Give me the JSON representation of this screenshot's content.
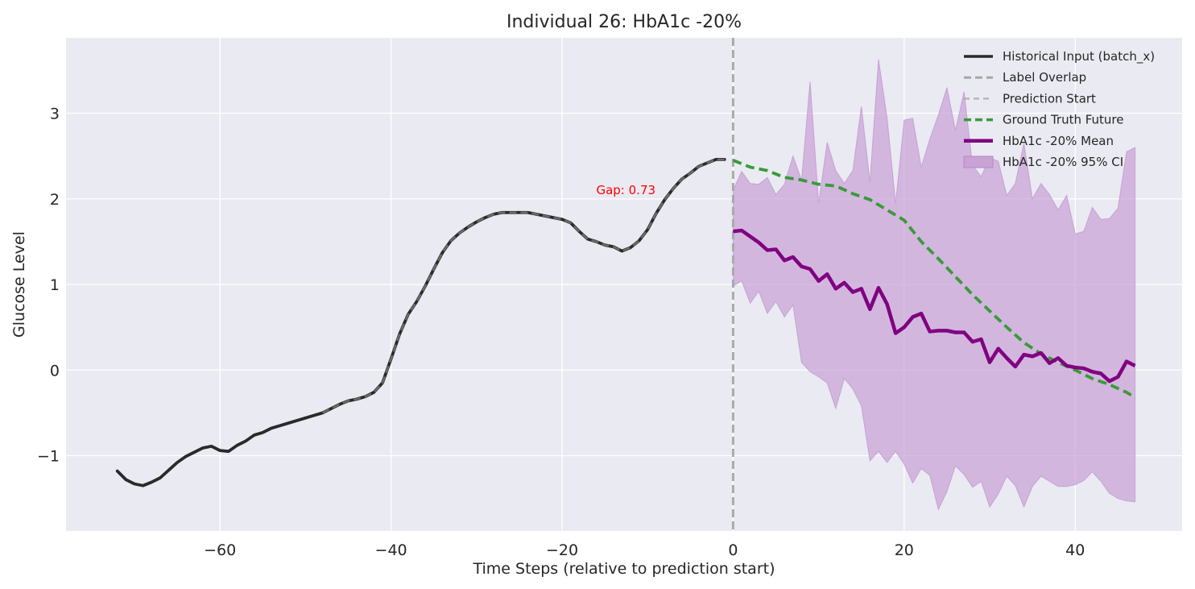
{
  "chart_data": {
    "type": "line",
    "title": "Individual 26: HbA1c -20%",
    "xlabel": "Time Steps (relative to prediction start)",
    "ylabel": "Glucose Level",
    "xlim": [
      -78,
      52.5
    ],
    "ylim": [
      -1.88,
      3.88
    ],
    "xticks": [
      -60,
      -40,
      -20,
      0,
      20,
      40
    ],
    "xtick_labels": [
      "−60",
      "−40",
      "−20",
      "0",
      "20",
      "40"
    ],
    "yticks": [
      -1,
      0,
      1,
      2,
      3
    ],
    "ytick_labels": [
      "−1",
      "0",
      "1",
      "2",
      "3"
    ],
    "grid": true,
    "legend_position": "top-right",
    "annotation": {
      "text": "Gap: 0.73",
      "x": -16,
      "y": 2.1,
      "color": "#ff0000"
    },
    "colors": {
      "historical": "#2a2a2a",
      "label_overlap": "#a0a0a0",
      "prediction_start": "#aaaaaa",
      "ground_truth": "#3a9a3a",
      "mean": "#800080",
      "ci": "#c9a2d6",
      "plot_bg": "#eaeaf2",
      "grid": "#ffffff"
    },
    "prediction_start_x": 0,
    "series": [
      {
        "name": "Historical Input (batch_x)",
        "style": "solid",
        "x": [
          -72,
          -71,
          -70,
          -69,
          -68,
          -67,
          -66,
          -65,
          -64,
          -63,
          -62,
          -61,
          -60,
          -59,
          -58,
          -57,
          -56,
          -55,
          -54,
          -53,
          -52,
          -51,
          -50,
          -49,
          -48,
          -47,
          -46,
          -45,
          -44,
          -43,
          -42,
          -41,
          -40,
          -39,
          -38,
          -37,
          -36,
          -35,
          -34,
          -33,
          -32,
          -31,
          -30,
          -29,
          -28,
          -27,
          -26,
          -25,
          -24,
          -23,
          -22,
          -21,
          -20,
          -19,
          -18,
          -17,
          -16,
          -15,
          -14,
          -13,
          -12,
          -11,
          -10,
          -9,
          -8,
          -7,
          -6,
          -5,
          -4,
          -3,
          -2,
          -1
        ],
        "y": [
          -1.18,
          -1.28,
          -1.33,
          -1.35,
          -1.31,
          -1.26,
          -1.17,
          -1.08,
          -1.01,
          -0.96,
          -0.91,
          -0.89,
          -0.94,
          -0.95,
          -0.88,
          -0.83,
          -0.76,
          -0.73,
          -0.68,
          -0.65,
          -0.62,
          -0.59,
          -0.56,
          -0.53,
          -0.5,
          -0.45,
          -0.4,
          -0.36,
          -0.34,
          -0.31,
          -0.26,
          -0.15,
          0.13,
          0.42,
          0.65,
          0.8,
          0.98,
          1.18,
          1.37,
          1.51,
          1.6,
          1.67,
          1.73,
          1.78,
          1.82,
          1.84,
          1.84,
          1.84,
          1.84,
          1.82,
          1.8,
          1.78,
          1.76,
          1.72,
          1.62,
          1.53,
          1.5,
          1.46,
          1.44,
          1.39,
          1.43,
          1.51,
          1.64,
          1.83,
          1.99,
          2.12,
          2.23,
          2.3,
          2.38,
          2.42,
          2.46,
          2.46
        ]
      },
      {
        "name": "Label Overlap",
        "style": "dashed",
        "x": [
          -48,
          -47,
          -46,
          -45,
          -44,
          -43,
          -42,
          -41,
          -40,
          -39,
          -38,
          -37,
          -36,
          -35,
          -34,
          -33,
          -32,
          -31,
          -30,
          -29,
          -28,
          -27,
          -26,
          -25,
          -24,
          -23,
          -22,
          -21,
          -20,
          -19,
          -18,
          -17,
          -16,
          -15,
          -14,
          -13,
          -12,
          -11,
          -10,
          -9,
          -8,
          -7,
          -6,
          -5,
          -4,
          -3,
          -2,
          -1
        ],
        "y": [
          -0.5,
          -0.45,
          -0.4,
          -0.36,
          -0.34,
          -0.31,
          -0.26,
          -0.15,
          0.13,
          0.42,
          0.65,
          0.8,
          0.98,
          1.18,
          1.37,
          1.51,
          1.6,
          1.67,
          1.73,
          1.78,
          1.82,
          1.84,
          1.84,
          1.84,
          1.84,
          1.82,
          1.8,
          1.78,
          1.76,
          1.72,
          1.62,
          1.53,
          1.5,
          1.46,
          1.44,
          1.39,
          1.43,
          1.51,
          1.64,
          1.83,
          1.99,
          2.12,
          2.23,
          2.3,
          2.38,
          2.42,
          2.46,
          2.46
        ]
      },
      {
        "name": "Prediction Start",
        "style": "dashed"
      },
      {
        "name": "Ground Truth Future",
        "style": "dashed",
        "x": [
          0,
          2,
          4,
          6,
          8,
          10,
          12,
          14,
          16,
          18,
          20,
          22,
          24,
          26,
          28,
          30,
          32,
          34,
          36,
          38,
          40,
          42,
          44,
          46,
          47
        ],
        "y": [
          2.45,
          2.37,
          2.33,
          2.25,
          2.22,
          2.17,
          2.15,
          2.06,
          1.99,
          1.87,
          1.75,
          1.5,
          1.3,
          1.09,
          0.88,
          0.69,
          0.5,
          0.32,
          0.19,
          0.09,
          0.0,
          -0.1,
          -0.17,
          -0.26,
          -0.32
        ]
      },
      {
        "name": "HbA1c -20% Mean",
        "style": "solid",
        "x": [
          0,
          1,
          2,
          3,
          4,
          5,
          6,
          7,
          8,
          9,
          10,
          11,
          12,
          13,
          14,
          15,
          16,
          17,
          18,
          19,
          20,
          21,
          22,
          23,
          24,
          25,
          26,
          27,
          28,
          29,
          30,
          31,
          32,
          33,
          34,
          35,
          36,
          37,
          38,
          39,
          40,
          41,
          42,
          43,
          44,
          45,
          46,
          47
        ],
        "y": [
          1.62,
          1.63,
          1.56,
          1.49,
          1.4,
          1.41,
          1.28,
          1.32,
          1.21,
          1.18,
          1.04,
          1.12,
          0.95,
          1.02,
          0.91,
          0.95,
          0.71,
          0.96,
          0.77,
          0.43,
          0.5,
          0.62,
          0.66,
          0.45,
          0.46,
          0.46,
          0.44,
          0.44,
          0.33,
          0.36,
          0.09,
          0.25,
          0.14,
          0.04,
          0.18,
          0.16,
          0.2,
          0.08,
          0.14,
          0.05,
          0.03,
          0.02,
          -0.02,
          -0.04,
          -0.13,
          -0.08,
          0.1,
          0.05
        ]
      },
      {
        "name": "HbA1c -20% 95% CI",
        "style": "band",
        "x": [
          0,
          1,
          2,
          3,
          4,
          5,
          6,
          7,
          8,
          9,
          10,
          11,
          12,
          13,
          14,
          15,
          16,
          17,
          18,
          19,
          20,
          21,
          22,
          23,
          24,
          25,
          26,
          27,
          28,
          29,
          30,
          31,
          32,
          33,
          34,
          35,
          36,
          37,
          38,
          39,
          40,
          41,
          42,
          43,
          44,
          45,
          46,
          47
        ],
        "upper": [
          2.1,
          2.32,
          2.18,
          2.17,
          2.25,
          2.05,
          2.17,
          2.5,
          2.22,
          3.37,
          1.95,
          2.66,
          2.33,
          2.18,
          2.33,
          3.08,
          2.2,
          3.63,
          2.95,
          1.95,
          2.92,
          2.94,
          2.37,
          2.7,
          2.98,
          3.3,
          2.8,
          3.25,
          2.39,
          2.26,
          2.48,
          2.44,
          2.04,
          2.18,
          2.65,
          2.0,
          2.18,
          2.05,
          1.87,
          2.04,
          1.59,
          1.62,
          1.9,
          1.76,
          1.77,
          1.89,
          2.55,
          2.6
        ],
        "lower": [
          0.98,
          1.04,
          0.78,
          0.92,
          0.66,
          0.8,
          0.62,
          0.76,
          0.09,
          -0.02,
          -0.08,
          -0.15,
          -0.45,
          -0.1,
          -0.22,
          -0.42,
          -1.06,
          -0.95,
          -1.08,
          -0.95,
          -1.1,
          -1.32,
          -1.15,
          -1.23,
          -1.63,
          -1.42,
          -1.12,
          -1.22,
          -1.37,
          -1.3,
          -1.6,
          -1.45,
          -1.24,
          -1.35,
          -1.6,
          -1.36,
          -1.24,
          -1.3,
          -1.36,
          -1.36,
          -1.34,
          -1.29,
          -1.19,
          -1.3,
          -1.44,
          -1.5,
          -1.53,
          -1.54
        ]
      }
    ]
  }
}
